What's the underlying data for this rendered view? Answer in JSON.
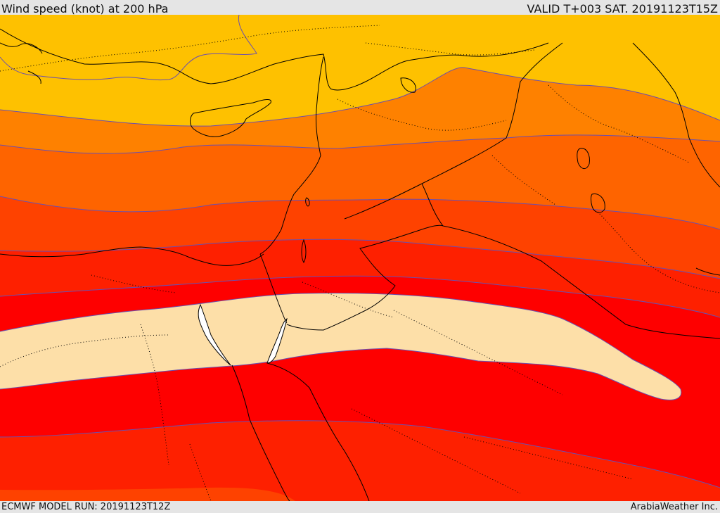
{
  "header": {
    "title": "Wind speed (knot) at 200 hPa",
    "valid": "VALID T+003 SAT. 20191123T15Z"
  },
  "footer": {
    "model_run": "ECMWF MODEL RUN: 20191123T12Z",
    "credit": "ArabiaWeather Inc."
  },
  "map": {
    "variable": "Wind speed",
    "units": "knot",
    "level": "200 hPa",
    "shading_bands": [
      {
        "name": "band-1",
        "color": "#fec100"
      },
      {
        "name": "band-2",
        "color": "#fea100"
      },
      {
        "name": "band-3",
        "color": "#fe8100"
      },
      {
        "name": "band-4",
        "color": "#fe6400"
      },
      {
        "name": "band-5",
        "color": "#fe4200"
      },
      {
        "name": "band-6",
        "color": "#fe2000"
      },
      {
        "name": "band-7",
        "color": "#fe0000"
      },
      {
        "name": "band-jet-core",
        "color": "#fddfa8"
      }
    ],
    "contour_color": "#6a4fb0",
    "coastline_color": "#000000",
    "border_style": "dotted"
  }
}
